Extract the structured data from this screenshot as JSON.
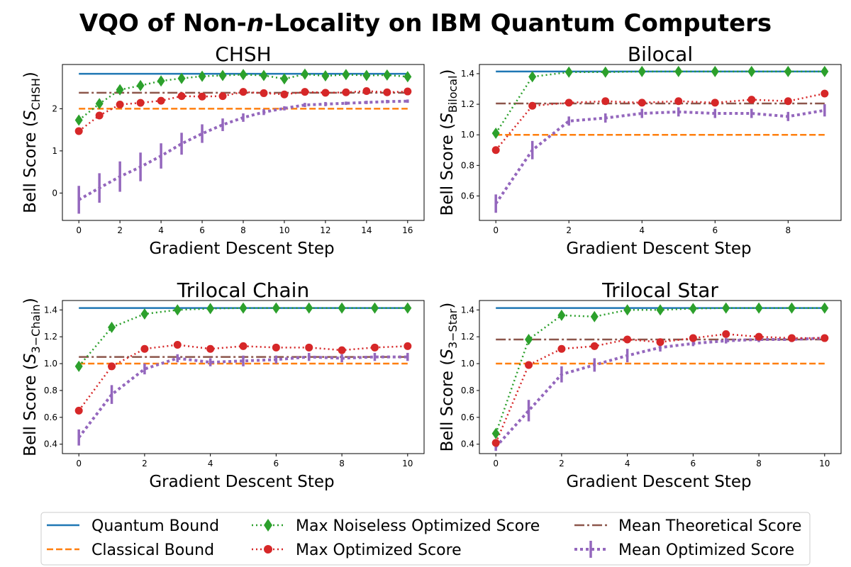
{
  "figure_title_parts": [
    "VQO of Non-",
    "n",
    "-Locality on IBM Quantum Computers"
  ],
  "colors": {
    "quantum": "#1f77b4",
    "classical": "#ff7f0e",
    "noiseless": "#2ca02c",
    "optimized": "#d62728",
    "theoretical": "#8c564b",
    "mean_optimized": "#9467bd"
  },
  "legend": {
    "quantum": "Quantum Bound",
    "classical": "Classical Bound",
    "noiseless": "Max Noiseless Optimized Score",
    "optimized": "Max Optimized Score",
    "theoretical": "Mean Theoretical Score",
    "mean_optimized": "Mean Optimized Score"
  },
  "chart_data": [
    {
      "type": "line",
      "title": "CHSH",
      "xlabel": "Gradient Descent Step",
      "ylabel_prefix": "Bell Score (",
      "ylabel_symbol": "S",
      "ylabel_sub": "CHSH",
      "ylabel_suffix": ")",
      "xlim": [
        -0.8,
        16.8
      ],
      "ylim": [
        -0.65,
        3.05
      ],
      "xticks": [
        0,
        2,
        4,
        6,
        8,
        10,
        12,
        14,
        16
      ],
      "yticks": [
        0,
        1,
        2
      ],
      "ytick_labels": [
        "0",
        "1",
        "2"
      ],
      "quantum_bound": 2.83,
      "classical_bound": 2.0,
      "mean_theoretical": 2.38,
      "x": [
        0,
        1,
        2,
        3,
        4,
        5,
        6,
        7,
        8,
        9,
        10,
        11,
        12,
        13,
        14,
        15,
        16
      ],
      "max_noiseless": [
        1.73,
        2.12,
        2.45,
        2.55,
        2.66,
        2.72,
        2.77,
        2.79,
        2.81,
        2.79,
        2.71,
        2.82,
        2.78,
        2.81,
        2.79,
        2.8,
        2.76
      ],
      "max_optimized": [
        1.47,
        1.84,
        2.1,
        2.14,
        2.19,
        2.3,
        2.29,
        2.3,
        2.4,
        2.37,
        2.34,
        2.4,
        2.38,
        2.39,
        2.42,
        2.39,
        2.41
      ],
      "mean_optimized": [
        -0.16,
        0.12,
        0.39,
        0.62,
        0.88,
        1.17,
        1.41,
        1.62,
        1.79,
        1.92,
        2.01,
        2.09,
        2.11,
        2.13,
        2.15,
        2.17,
        2.18
      ],
      "mean_optimized_err": [
        0.33,
        0.35,
        0.36,
        0.34,
        0.3,
        0.26,
        0.22,
        0.15,
        0.1,
        0.07,
        0.05,
        0.05,
        0.05,
        0.04,
        0.04,
        0.04,
        0.04
      ]
    },
    {
      "type": "line",
      "title": "Bilocal",
      "xlabel": "Gradient Descent Step",
      "ylabel_prefix": "Bell Score (",
      "ylabel_symbol": "S",
      "ylabel_sub": "Bilocal",
      "ylabel_suffix": ")",
      "xlim": [
        -0.45,
        9.45
      ],
      "ylim": [
        0.44,
        1.46
      ],
      "xticks": [
        0,
        2,
        4,
        6,
        8
      ],
      "yticks": [
        0.6,
        0.8,
        1.0,
        1.2,
        1.4
      ],
      "ytick_labels": [
        "0.6",
        "0.8",
        "1.0",
        "1.2",
        "1.4"
      ],
      "quantum_bound": 1.414,
      "classical_bound": 1.0,
      "mean_theoretical": 1.205,
      "x": [
        0,
        1,
        2,
        3,
        4,
        5,
        6,
        7,
        8,
        9
      ],
      "max_noiseless": [
        1.01,
        1.38,
        1.41,
        1.41,
        1.414,
        1.414,
        1.414,
        1.414,
        1.414,
        1.414
      ],
      "max_optimized": [
        0.9,
        1.19,
        1.21,
        1.22,
        1.21,
        1.22,
        1.21,
        1.23,
        1.22,
        1.27
      ],
      "mean_optimized": [
        0.55,
        0.9,
        1.09,
        1.11,
        1.14,
        1.15,
        1.14,
        1.14,
        1.12,
        1.16
      ],
      "mean_optimized_err": [
        0.06,
        0.06,
        0.03,
        0.03,
        0.03,
        0.03,
        0.03,
        0.03,
        0.03,
        0.04
      ]
    },
    {
      "type": "line",
      "title": "Trilocal Chain",
      "xlabel": "Gradient Descent Step",
      "ylabel_prefix": "Bell Score (",
      "ylabel_symbol": "S",
      "ylabel_sub": "3−Chain",
      "ylabel_suffix": ")",
      "xlim": [
        -0.5,
        10.5
      ],
      "ylim": [
        0.33,
        1.47
      ],
      "xticks": [
        0,
        2,
        4,
        6,
        8,
        10
      ],
      "yticks": [
        0.4,
        0.6,
        0.8,
        1.0,
        1.2,
        1.4
      ],
      "ytick_labels": [
        "0.4",
        "0.6",
        "0.8",
        "1.0",
        "1.2",
        "1.4"
      ],
      "quantum_bound": 1.414,
      "classical_bound": 1.0,
      "mean_theoretical": 1.05,
      "x": [
        0,
        1,
        2,
        3,
        4,
        5,
        6,
        7,
        8,
        9,
        10
      ],
      "max_noiseless": [
        0.98,
        1.27,
        1.37,
        1.4,
        1.41,
        1.414,
        1.414,
        1.414,
        1.414,
        1.414,
        1.414
      ],
      "max_optimized": [
        0.65,
        0.98,
        1.11,
        1.14,
        1.11,
        1.13,
        1.12,
        1.12,
        1.1,
        1.12,
        1.13
      ],
      "mean_optimized": [
        0.45,
        0.77,
        0.96,
        1.04,
        1.01,
        1.02,
        1.03,
        1.05,
        1.04,
        1.05,
        1.05
      ],
      "mean_optimized_err": [
        0.06,
        0.07,
        0.04,
        0.03,
        0.03,
        0.04,
        0.03,
        0.03,
        0.03,
        0.03,
        0.03
      ]
    },
    {
      "type": "line",
      "title": "Trilocal Star",
      "xlabel": "Gradient Descent Step",
      "ylabel_prefix": "Bell Score (",
      "ylabel_symbol": "S",
      "ylabel_sub": "3−Star",
      "ylabel_suffix": ")",
      "xlim": [
        -0.5,
        10.5
      ],
      "ylim": [
        0.33,
        1.47
      ],
      "xticks": [
        0,
        2,
        4,
        6,
        8,
        10
      ],
      "yticks": [
        0.4,
        0.6,
        0.8,
        1.0,
        1.2,
        1.4
      ],
      "ytick_labels": [
        "0.4",
        "0.6",
        "0.8",
        "1.0",
        "1.2",
        "1.4"
      ],
      "quantum_bound": 1.414,
      "classical_bound": 1.0,
      "mean_theoretical": 1.18,
      "x": [
        0,
        1,
        2,
        3,
        4,
        5,
        6,
        7,
        8,
        9,
        10
      ],
      "max_noiseless": [
        0.48,
        1.18,
        1.36,
        1.35,
        1.4,
        1.4,
        1.41,
        1.414,
        1.414,
        1.414,
        1.414
      ],
      "max_optimized": [
        0.41,
        0.99,
        1.11,
        1.13,
        1.18,
        1.16,
        1.19,
        1.22,
        1.2,
        1.19,
        1.19
      ],
      "mean_optimized": [
        0.38,
        0.65,
        0.92,
        0.99,
        1.06,
        1.12,
        1.15,
        1.17,
        1.18,
        1.18,
        1.19
      ],
      "mean_optimized_err": [
        0.03,
        0.08,
        0.06,
        0.05,
        0.05,
        0.03,
        0.02,
        0.02,
        0.02,
        0.02,
        0.02
      ]
    }
  ]
}
